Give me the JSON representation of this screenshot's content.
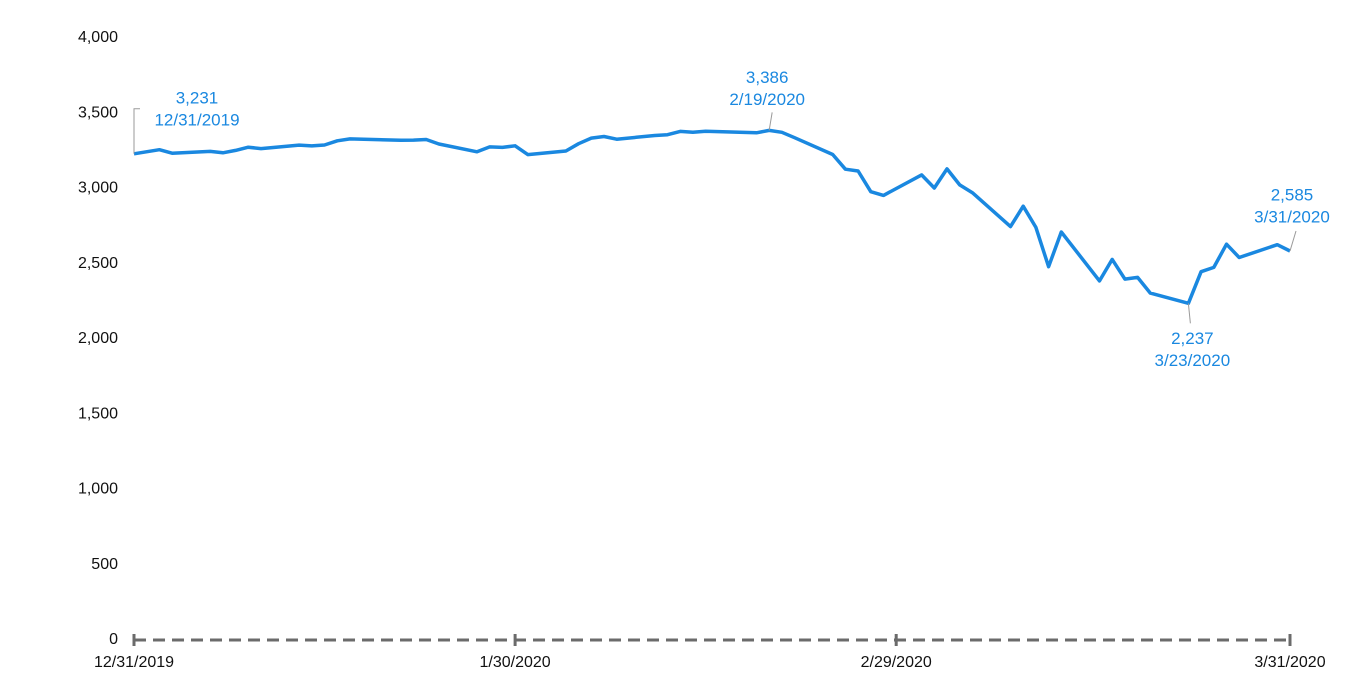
{
  "chart_data": {
    "type": "line",
    "color": "#1a88e0",
    "x": [
      "12/31/2019",
      "1/2/2020",
      "1/3/2020",
      "1/6/2020",
      "1/7/2020",
      "1/8/2020",
      "1/9/2020",
      "1/10/2020",
      "1/13/2020",
      "1/14/2020",
      "1/15/2020",
      "1/16/2020",
      "1/17/2020",
      "1/21/2020",
      "1/22/2020",
      "1/23/2020",
      "1/24/2020",
      "1/27/2020",
      "1/28/2020",
      "1/29/2020",
      "1/30/2020",
      "1/31/2020",
      "2/3/2020",
      "2/4/2020",
      "2/5/2020",
      "2/6/2020",
      "2/7/2020",
      "2/10/2020",
      "2/11/2020",
      "2/12/2020",
      "2/13/2020",
      "2/14/2020",
      "2/18/2020",
      "2/19/2020",
      "2/20/2020",
      "2/21/2020",
      "2/24/2020",
      "2/25/2020",
      "2/26/2020",
      "2/27/2020",
      "2/28/2020",
      "3/2/2020",
      "3/3/2020",
      "3/4/2020",
      "3/5/2020",
      "3/6/2020",
      "3/9/2020",
      "3/10/2020",
      "3/11/2020",
      "3/12/2020",
      "3/13/2020",
      "3/16/2020",
      "3/17/2020",
      "3/18/2020",
      "3/19/2020",
      "3/20/2020",
      "3/23/2020",
      "3/24/2020",
      "3/25/2020",
      "3/26/2020",
      "3/27/2020",
      "3/30/2020",
      "3/31/2020"
    ],
    "values": [
      3230.78,
      3257.85,
      3234.85,
      3246.28,
      3237.18,
      3253.05,
      3274.7,
      3265.35,
      3288.13,
      3283.15,
      3289.29,
      3316.81,
      3329.62,
      3320.79,
      3321.75,
      3325.54,
      3295.47,
      3243.63,
      3276.24,
      3273.4,
      3283.66,
      3225.52,
      3248.92,
      3297.59,
      3334.69,
      3345.78,
      3327.71,
      3352.09,
      3357.75,
      3379.45,
      3373.94,
      3380.16,
      3370.29,
      3386.15,
      3373.23,
      3337.75,
      3225.89,
      3128.21,
      3116.39,
      2978.76,
      2954.22,
      3090.23,
      3003.37,
      3130.12,
      3023.94,
      2972.37,
      2746.56,
      2882.23,
      2741.38,
      2480.64,
      2711.02,
      2386.13,
      2529.19,
      2398.1,
      2409.39,
      2304.92,
      2237.4,
      2447.33,
      2475.56,
      2630.07,
      2541.47,
      2626.65,
      2584.59
    ],
    "xlim": [
      "12/31/2019",
      "3/31/2020"
    ],
    "xticks": [
      "12/31/2019",
      "1/30/2020",
      "2/29/2020",
      "3/31/2020"
    ],
    "ylim": [
      0,
      4000
    ],
    "yticks": [
      0,
      500,
      {
        "value": 1000,
        "label": "1,000"
      },
      {
        "value": 1500,
        "label": "1,500"
      },
      {
        "value": 2000,
        "label": "2,000"
      },
      {
        "value": 2500,
        "label": "2,500"
      },
      {
        "value": 3000,
        "label": "3,000"
      },
      {
        "value": 3500,
        "label": "3,500"
      },
      {
        "value": 4000,
        "label": "4,000"
      }
    ],
    "annotations": [
      {
        "x": "12/31/2019",
        "y": 3230.78,
        "label": "3,231"
      },
      {
        "x": "2/19/2020",
        "y": 3386.15,
        "label": "3,386"
      },
      {
        "x": "3/23/2020",
        "y": 2237.4,
        "label": "2,237"
      },
      {
        "x": "3/31/2020",
        "y": 2584.59,
        "label": "2,585"
      }
    ]
  }
}
